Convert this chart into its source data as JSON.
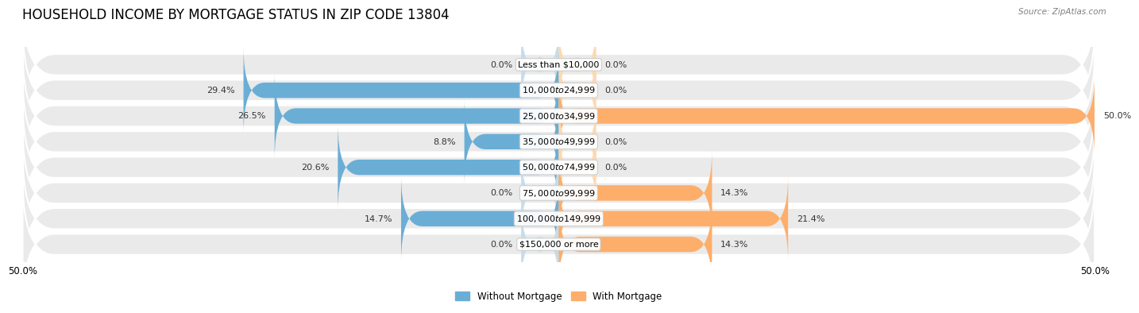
{
  "title": "HOUSEHOLD INCOME BY MORTGAGE STATUS IN ZIP CODE 13804",
  "source": "Source: ZipAtlas.com",
  "categories": [
    "Less than $10,000",
    "$10,000 to $24,999",
    "$25,000 to $34,999",
    "$35,000 to $49,999",
    "$50,000 to $74,999",
    "$75,000 to $99,999",
    "$100,000 to $149,999",
    "$150,000 or more"
  ],
  "without_mortgage": [
    0.0,
    29.4,
    26.5,
    8.8,
    20.6,
    0.0,
    14.7,
    0.0
  ],
  "with_mortgage": [
    0.0,
    0.0,
    50.0,
    0.0,
    0.0,
    14.3,
    21.4,
    14.3
  ],
  "without_mortgage_color": "#6aaed6",
  "with_mortgage_color": "#fdae6b",
  "without_mortgage_color_light": "#c6dcec",
  "with_mortgage_color_light": "#fdd9b0",
  "row_bg_color": "#eaeaea",
  "xlim_left": -50,
  "xlim_right": 50,
  "legend_without": "Without Mortgage",
  "legend_with": "With Mortgage",
  "title_fontsize": 12,
  "label_fontsize": 8,
  "axis_label_fontsize": 8.5,
  "stub_size": 3.5
}
